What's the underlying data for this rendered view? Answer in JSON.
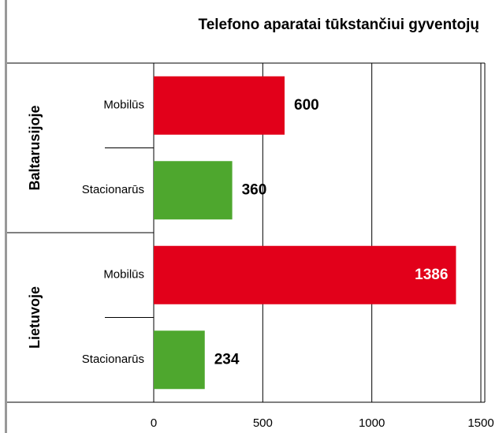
{
  "chart_data": {
    "type": "bar",
    "orientation": "horizontal",
    "title": "Telefono aparatai tūkstančiui gyventojų",
    "groups": [
      "Baltarusijoje",
      "Lietuvoje"
    ],
    "categories": [
      "Mobilūs",
      "Stacionarūs",
      "Mobilūs",
      "Stacionarūs"
    ],
    "values": [
      600,
      360,
      1386,
      234
    ],
    "colors": [
      "#e2001a",
      "#4ea72e",
      "#e2001a",
      "#4ea72e"
    ],
    "xlim": [
      0,
      1500
    ],
    "xticks": [
      0,
      500,
      1000,
      1500
    ],
    "grid": true
  }
}
